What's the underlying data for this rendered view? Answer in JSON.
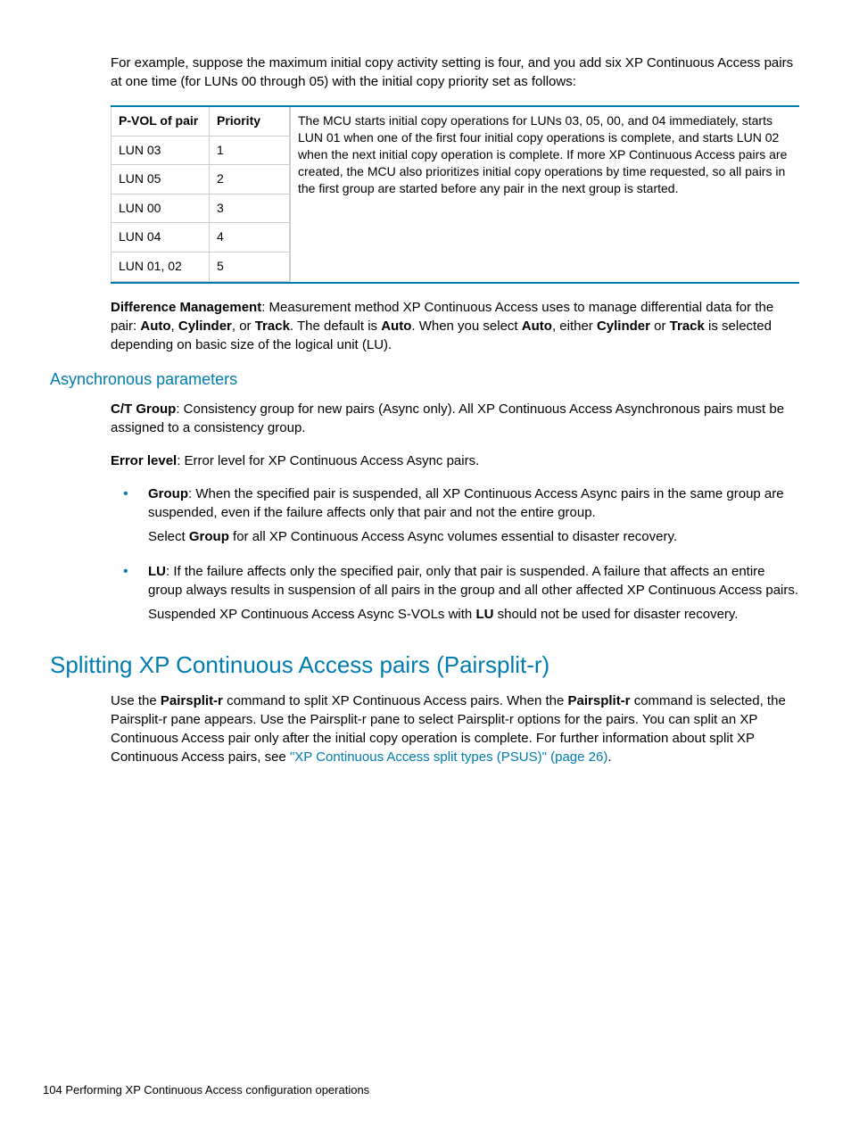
{
  "colors": {
    "accent": "#007cb0",
    "border": "#cccccc",
    "text": "#000000",
    "background": "#ffffff"
  },
  "intro": "For example, suppose the maximum initial copy activity setting is four, and you add six XP Continuous Access pairs at one time (for LUNs 00 through 05) with the initial copy priority set as follows:",
  "table": {
    "headers": {
      "pvol": "P-VOL of pair",
      "priority": "Priority"
    },
    "rows": [
      {
        "pvol": "LUN 03",
        "priority": "1"
      },
      {
        "pvol": "LUN 05",
        "priority": "2"
      },
      {
        "pvol": "LUN 00",
        "priority": "3"
      },
      {
        "pvol": "LUN 04",
        "priority": "4"
      },
      {
        "pvol": "LUN 01, 02",
        "priority": "5"
      }
    ],
    "description": "The MCU starts initial copy operations for LUNs 03, 05, 00, and 04 immediately, starts LUN 01 when one of the first four initial copy operations is complete, and starts LUN 02 when the next initial copy operation is complete. If more XP Continuous Access pairs are created, the MCU also prioritizes initial copy operations by time requested, so all pairs in the first group are started before any pair in the next group is started."
  },
  "diff_mgmt": {
    "label": "Difference Management",
    "t1": ": Measurement method XP Continuous Access uses to manage differential data for the pair: ",
    "b1": "Auto",
    "s1": ", ",
    "b2": "Cylinder",
    "s2": ", or ",
    "b3": "Track",
    "s3": ". The default is ",
    "b4": "Auto",
    "s4": ". When you select ",
    "b5": "Auto",
    "s5": ", either ",
    "b6": "Cylinder",
    "s6": " or ",
    "b7": "Track",
    "s7": " is selected depending on basic size of the logical unit (LU)."
  },
  "async": {
    "heading": "Asynchronous parameters",
    "ct_label": "C/T Group",
    "ct_text": ": Consistency group for new pairs (Async only). All XP Continuous Access Asynchronous pairs must be assigned to a consistency group.",
    "err_label": "Error level",
    "err_text": ": Error level for XP Continuous Access Async pairs.",
    "group_label": "Group",
    "group_text": ": When the specified pair is suspended, all XP Continuous Access Async pairs in the same group are suspended, even if the failure affects only that pair and not the entire group.",
    "group_p2a": "Select ",
    "group_p2b": "Group",
    "group_p2c": " for all XP Continuous Access Async volumes essential to disaster recovery.",
    "lu_label": "LU",
    "lu_text": ": If the failure affects only the specified pair, only that pair is suspended. A failure that affects an entire group always results in suspension of all pairs in the group and all other affected XP Continuous Access pairs.",
    "lu_p2a": "Suspended XP Continuous Access Async S-VOLs with ",
    "lu_p2b": "LU",
    "lu_p2c": " should not be used for disaster recovery."
  },
  "split": {
    "heading": "Splitting XP Continuous Access pairs (Pairsplit-r)",
    "t1": "Use the ",
    "b1": "Pairsplit-r",
    "t2": " command to split XP Continuous Access pairs. When the ",
    "b2": "Pairsplit-r",
    "t3": " command is selected, the Pairsplit-r pane appears. Use the Pairsplit-r pane to select Pairsplit-r options for the pairs. You can split an XP Continuous Access pair only after the initial copy operation is complete. For further information about split XP Continuous Access pairs, see ",
    "link": "\"XP Continuous Access split types (PSUS)\" (page 26)",
    "t4": "."
  },
  "footer": {
    "page": "104",
    "sep": "   ",
    "title": "Performing XP Continuous Access configuration operations"
  }
}
